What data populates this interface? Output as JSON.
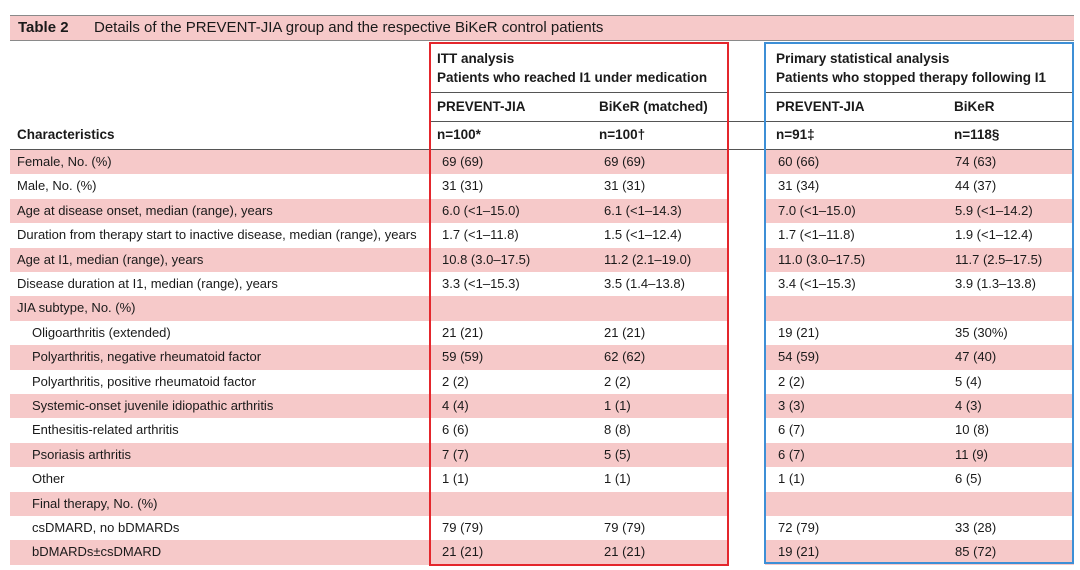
{
  "title": {
    "label": "Table 2",
    "text": "Details of the PREVENT-JIA group and the respective BiKeR control patients"
  },
  "groups": {
    "itt": {
      "line1": "ITT analysis",
      "line2": "Patients who reached I1 under medication"
    },
    "primary": {
      "line1": "Primary statistical analysis",
      "line2": "Patients who stopped therapy following I1"
    }
  },
  "columns": {
    "characteristics": "Characteristics",
    "itt_prevent": {
      "name": "PREVENT-JIA",
      "n": "n=100*"
    },
    "itt_biker": {
      "name": "BiKeR (matched)",
      "n": "n=100†"
    },
    "prim_prevent": {
      "name": "PREVENT-JIA",
      "n": "n=91‡"
    },
    "prim_biker": {
      "name": "BiKeR",
      "n": "n=118§"
    }
  },
  "rows": [
    {
      "label": "Female, No. (%)",
      "itt_p": "69 (69)",
      "itt_b": "69 (69)",
      "prim_p": "60 (66)",
      "prim_b": "74 (63)"
    },
    {
      "label": "Male, No. (%)",
      "itt_p": "31 (31)",
      "itt_b": "31 (31)",
      "prim_p": "31 (34)",
      "prim_b": "44 (37)"
    },
    {
      "label": "Age at disease onset, median (range), years",
      "itt_p": "6.0 (<1–15.0)",
      "itt_b": "6.1 (<1–14.3)",
      "prim_p": "7.0 (<1–15.0)",
      "prim_b": "5.9 (<1–14.2)"
    },
    {
      "label": "Duration from therapy start to inactive disease, median (range), years",
      "itt_p": "1.7 (<1–11.8)",
      "itt_b": "1.5 (<1–12.4)",
      "prim_p": "1.7 (<1–11.8)",
      "prim_b": "1.9 (<1–12.4)"
    },
    {
      "label": "Age at I1, median (range), years",
      "itt_p": "10.8 (3.0–17.5)",
      "itt_b": "11.2 (2.1–19.0)",
      "prim_p": "11.0 (3.0–17.5)",
      "prim_b": "11.7 (2.5–17.5)"
    },
    {
      "label": "Disease duration at I1, median (range), years",
      "itt_p": "3.3 (<1–15.3)",
      "itt_b": "3.5 (1.4–13.8)",
      "prim_p": "3.4 (<1–15.3)",
      "prim_b": "3.9 (1.3–13.8)"
    },
    {
      "label": "JIA subtype, No. (%)",
      "itt_p": "",
      "itt_b": "",
      "prim_p": "",
      "prim_b": ""
    },
    {
      "label": "Oligoarthritis (extended)",
      "indent": true,
      "itt_p": "21 (21)",
      "itt_b": "21 (21)",
      "prim_p": "19 (21)",
      "prim_b": "35 (30%)"
    },
    {
      "label": "Polyarthritis, negative rheumatoid factor",
      "indent": true,
      "itt_p": "59 (59)",
      "itt_b": "62 (62)",
      "prim_p": "54 (59)",
      "prim_b": "47 (40)"
    },
    {
      "label": "Polyarthritis, positive rheumatoid factor",
      "indent": true,
      "itt_p": "2 (2)",
      "itt_b": "2 (2)",
      "prim_p": "2 (2)",
      "prim_b": "5 (4)"
    },
    {
      "label": "Systemic-onset juvenile idiopathic arthritis",
      "indent": true,
      "itt_p": "4 (4)",
      "itt_b": "1 (1)",
      "prim_p": "3 (3)",
      "prim_b": "4 (3)"
    },
    {
      "label": "Enthesitis-related arthritis",
      "indent": true,
      "itt_p": "6 (6)",
      "itt_b": "8 (8)",
      "prim_p": "6 (7)",
      "prim_b": "10 (8)"
    },
    {
      "label": "Psoriasis arthritis",
      "indent": true,
      "itt_p": "7 (7)",
      "itt_b": "5 (5)",
      "prim_p": "6 (7)",
      "prim_b": "11 (9)"
    },
    {
      "label": "Other",
      "indent": true,
      "itt_p": "1 (1)",
      "itt_b": "1 (1)",
      "prim_p": "1 (1)",
      "prim_b": "6 (5)"
    },
    {
      "label": "Final therapy, No. (%)",
      "indent": true,
      "itt_p": "",
      "itt_b": "",
      "prim_p": "",
      "prim_b": ""
    },
    {
      "label": "csDMARD, no bDMARDs",
      "indent": true,
      "itt_p": "79 (79)",
      "itt_b": "79 (79)",
      "prim_p": "72 (79)",
      "prim_b": "33 (28)"
    },
    {
      "label": "bDMARDs±csDMARD",
      "indent": true,
      "itt_p": "21 (21)",
      "itt_b": "21 (21)",
      "prim_p": "19 (21)",
      "prim_b": "85 (72)"
    }
  ],
  "colors": {
    "row_shade": "#f6c9c9",
    "itt_box": "#e4262c",
    "primary_box": "#3d8fd6"
  }
}
